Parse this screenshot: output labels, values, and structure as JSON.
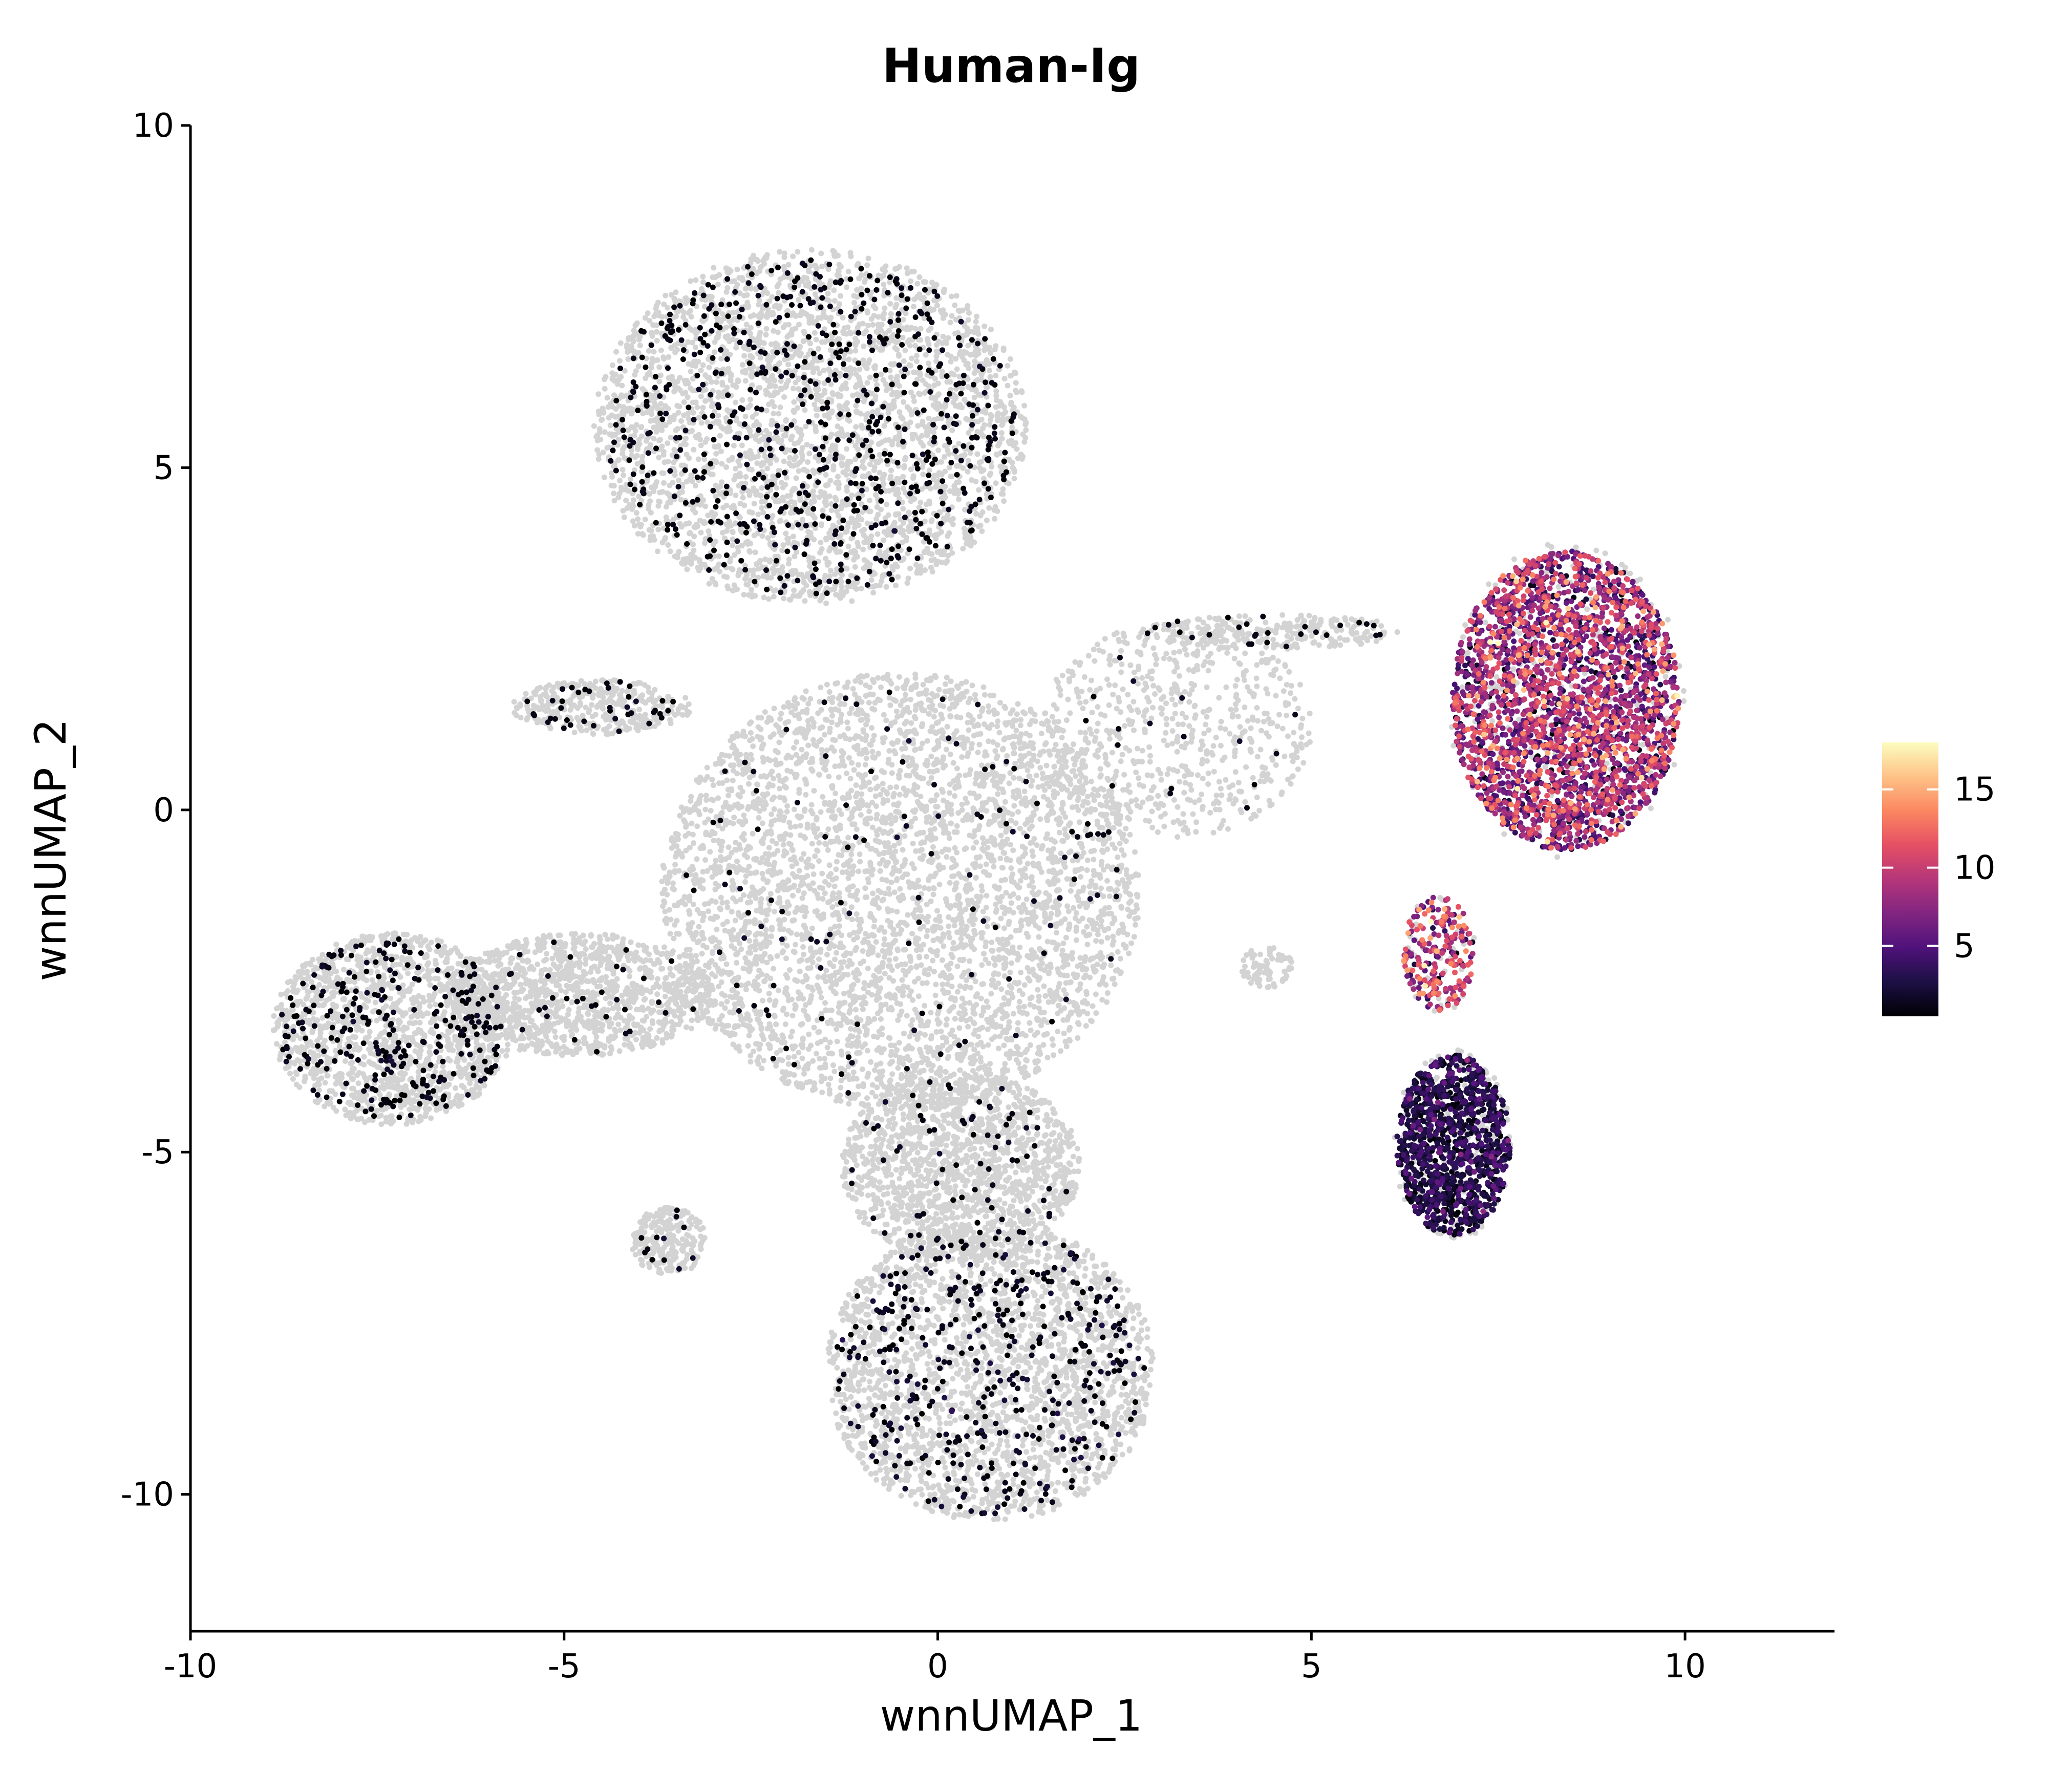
{
  "chart_data": {
    "type": "scatter",
    "title": "Human-Ig",
    "xlabel": "wnnUMAP_1",
    "ylabel": "wnnUMAP_2",
    "xlim": [
      -10,
      12
    ],
    "ylim": [
      -12,
      10
    ],
    "x_ticks": [
      -10,
      -5,
      0,
      5,
      10
    ],
    "x_tick_labels": [
      "-10",
      "-5",
      "0",
      "5",
      "10"
    ],
    "y_ticks": [
      -10,
      -5,
      0,
      5,
      10
    ],
    "y_tick_labels": [
      "-10",
      "-5",
      "0",
      "5",
      "10"
    ],
    "grid": false,
    "background_color": "#d3d3d3",
    "colorscale": {
      "name": "magma",
      "min": 0.5,
      "max": 18,
      "ticks": [
        5,
        10,
        15
      ],
      "tick_labels": [
        "5",
        "10",
        "15"
      ],
      "stops": [
        "#000004",
        "#1c1044",
        "#4f127b",
        "#812581",
        "#b5367a",
        "#e55064",
        "#fb8761",
        "#fec287",
        "#fcfdbf"
      ]
    },
    "legend_position": "right",
    "clusters": [
      {
        "name": "top-cluster",
        "cx": -1.7,
        "cy": 5.6,
        "rx": 2.9,
        "ry": 2.6,
        "n_gray": 3200,
        "n_expr": 650,
        "expr_mean": 0.8,
        "expr_sd": 0.4
      },
      {
        "name": "top-left-arm",
        "cx": -4.5,
        "cy": 1.5,
        "rx": 1.2,
        "ry": 0.4,
        "n_gray": 350,
        "n_expr": 40,
        "expr_mean": 0.8,
        "expr_sd": 0.4
      },
      {
        "name": "center-body",
        "cx": -0.5,
        "cy": -1.2,
        "rx": 3.2,
        "ry": 3.2,
        "n_gray": 4200,
        "n_expr": 120,
        "expr_mean": 0.9,
        "expr_sd": 0.6
      },
      {
        "name": "left-lobe",
        "cx": -7.3,
        "cy": -3.2,
        "rx": 1.6,
        "ry": 1.4,
        "n_gray": 1500,
        "n_expr": 280,
        "expr_mean": 0.8,
        "expr_sd": 0.5
      },
      {
        "name": "left-bridge",
        "cx": -4.8,
        "cy": -2.7,
        "rx": 1.8,
        "ry": 0.9,
        "n_gray": 1200,
        "n_expr": 40,
        "expr_mean": 0.8,
        "expr_sd": 0.4
      },
      {
        "name": "bottom-cluster",
        "cx": 0.7,
        "cy": -8.2,
        "rx": 2.2,
        "ry": 2.2,
        "n_gray": 2400,
        "n_expr": 420,
        "expr_mean": 1.0,
        "expr_sd": 0.8
      },
      {
        "name": "lower-stem",
        "cx": 0.3,
        "cy": -5.2,
        "rx": 1.6,
        "ry": 1.4,
        "n_gray": 1500,
        "n_expr": 70,
        "expr_mean": 0.9,
        "expr_sd": 0.5
      },
      {
        "name": "small-left-bottom",
        "cx": -3.6,
        "cy": -6.3,
        "rx": 0.5,
        "ry": 0.5,
        "n_gray": 220,
        "n_expr": 12,
        "expr_mean": 1.2,
        "expr_sd": 0.8
      },
      {
        "name": "right-mid-spread",
        "cx": 3.2,
        "cy": 1.2,
        "rx": 1.8,
        "ry": 1.6,
        "n_gray": 650,
        "n_expr": 20,
        "expr_mean": 0.8,
        "expr_sd": 0.4
      },
      {
        "name": "bridge-to-right",
        "cx": 4.5,
        "cy": 2.6,
        "rx": 1.8,
        "ry": 0.25,
        "n_gray": 250,
        "n_expr": 25,
        "expr_mean": 0.8,
        "expr_sd": 0.3
      },
      {
        "name": "plasma-cluster",
        "cx": 8.4,
        "cy": 1.6,
        "rx": 1.6,
        "ry": 2.3,
        "n_gray": 300,
        "n_expr": 2800,
        "expr_mean": 7.5,
        "expr_sd": 3.5
      },
      {
        "name": "plasma-stalk",
        "cx": 6.7,
        "cy": -2.1,
        "rx": 0.5,
        "ry": 0.9,
        "n_gray": 40,
        "n_expr": 220,
        "expr_mean": 9.0,
        "expr_sd": 3.5
      },
      {
        "name": "lower-right-cluster",
        "cx": 6.9,
        "cy": -4.9,
        "rx": 0.8,
        "ry": 1.4,
        "n_gray": 250,
        "n_expr": 1100,
        "expr_mean": 2.5,
        "expr_sd": 1.5
      },
      {
        "name": "small-right-blob",
        "cx": 4.4,
        "cy": -2.3,
        "rx": 0.35,
        "ry": 0.3,
        "n_gray": 80,
        "n_expr": 0,
        "expr_mean": 1.0,
        "expr_sd": 0.5
      }
    ]
  }
}
